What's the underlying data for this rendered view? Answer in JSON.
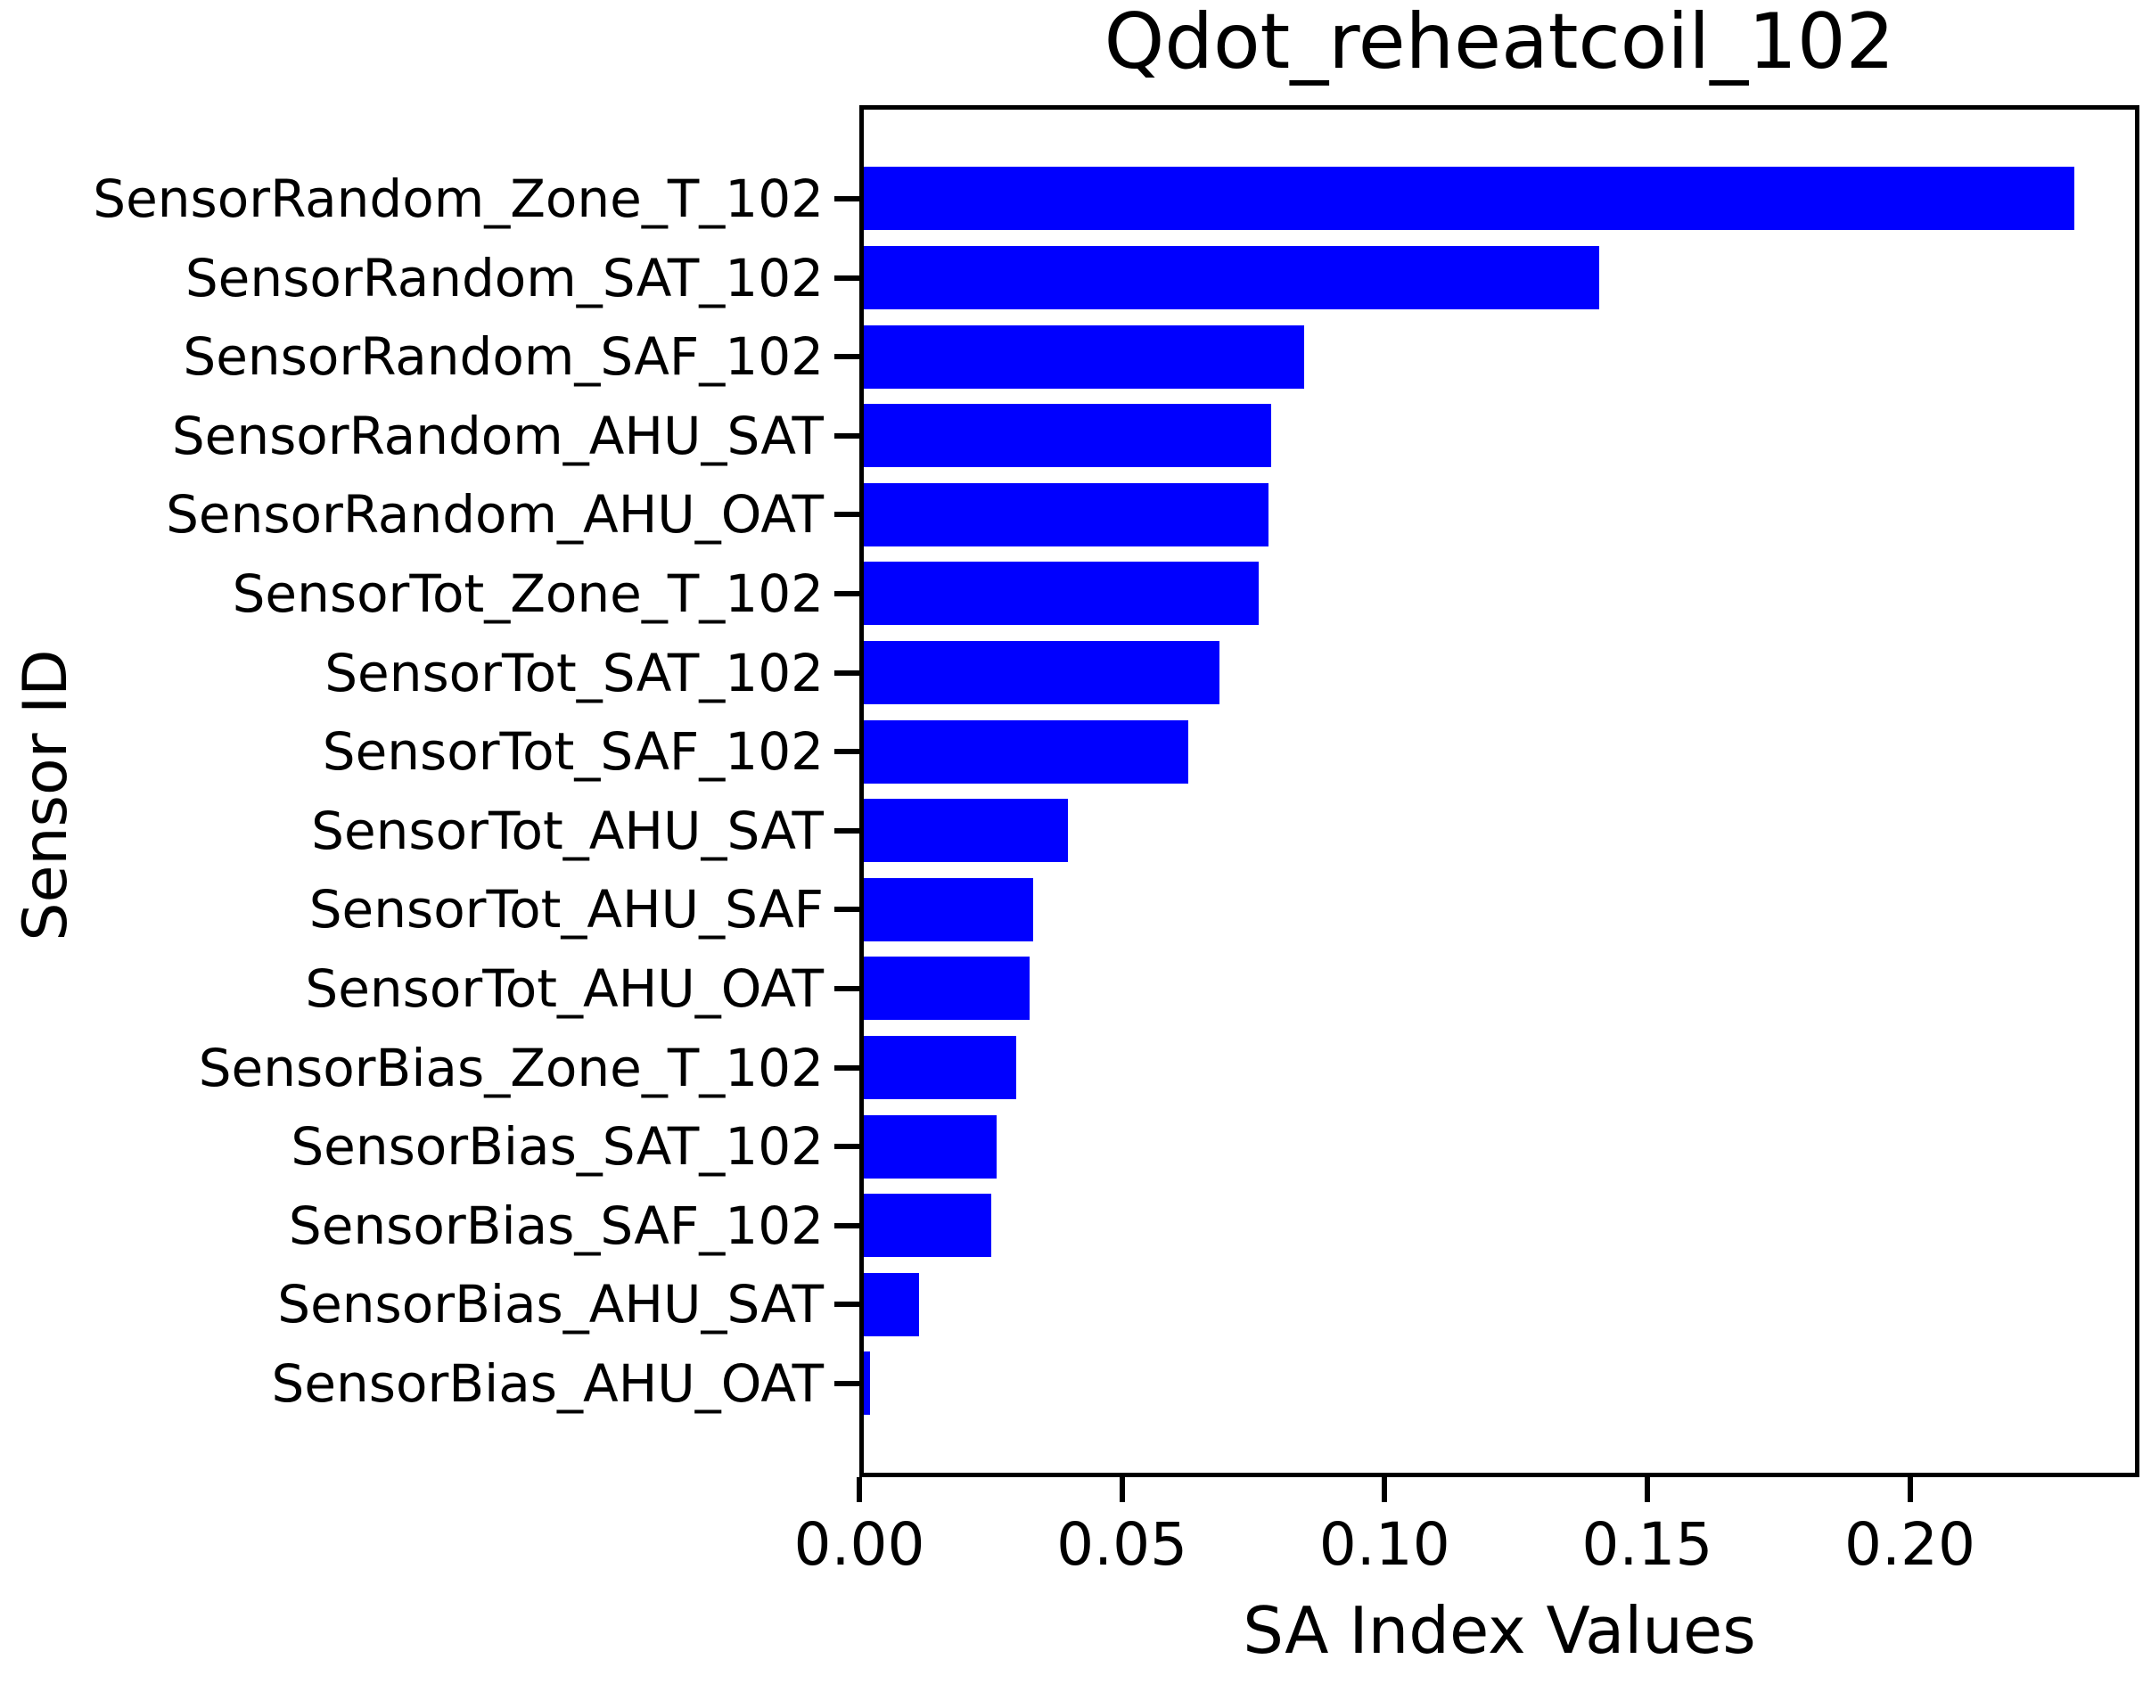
{
  "chart_data": {
    "type": "bar",
    "orientation": "horizontal",
    "title": "Qdot_reheatcoil_102",
    "xlabel": "SA Index Values",
    "ylabel": "Sensor ID",
    "categories": [
      "SensorRandom_Zone_T_102",
      "SensorRandom_SAT_102",
      "SensorRandom_SAF_102",
      "SensorRandom_AHU_SAT",
      "SensorRandom_AHU_OAT",
      "SensorTot_Zone_T_102",
      "SensorTot_SAT_102",
      "SensorTot_SAF_102",
      "SensorTot_AHU_SAT",
      "SensorTot_AHU_SAF",
      "SensorTot_AHU_OAT",
      "SensorBias_Zone_T_102",
      "SensorBias_SAT_102",
      "SensorBias_SAF_102",
      "SensorBias_AHU_SAT",
      "SensorBias_AHU_OAT"
    ],
    "values": [
      0.2305,
      0.14,
      0.0838,
      0.0776,
      0.077,
      0.0752,
      0.0677,
      0.0618,
      0.0388,
      0.0323,
      0.0316,
      0.0291,
      0.0253,
      0.0243,
      0.0106,
      0.0012
    ],
    "xlim": [
      0,
      0.242
    ],
    "xticks": [
      0.0,
      0.05,
      0.1,
      0.15,
      0.2
    ],
    "xtick_labels": [
      "0.00",
      "0.05",
      "0.10",
      "0.15",
      "0.20"
    ],
    "bar_color": "#0000ff",
    "grid": false,
    "legend_position": "none"
  }
}
